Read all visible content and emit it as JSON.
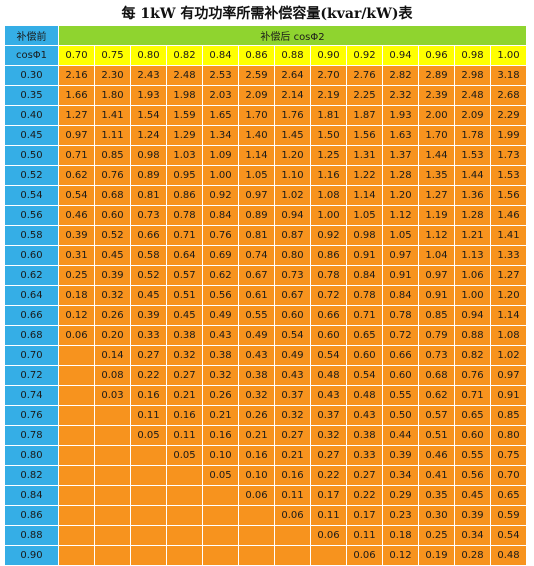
{
  "title": "每 1kW 有功功率所需补偿容量(kvar/kW)表",
  "header": {
    "before_label_line1": "补偿前",
    "before_label_line2": "cosΦ1",
    "after_label": "补偿后 cosΦ2"
  },
  "cos2": [
    "0.70",
    "0.75",
    "0.80",
    "0.82",
    "0.84",
    "0.86",
    "0.88",
    "0.90",
    "0.92",
    "0.94",
    "0.96",
    "0.98",
    "1.00"
  ],
  "rows": [
    {
      "cos1": "0.30",
      "values": [
        "2.16",
        "2.30",
        "2.43",
        "2.48",
        "2.53",
        "2.59",
        "2.64",
        "2.70",
        "2.76",
        "2.82",
        "2.89",
        "2.98",
        "3.18"
      ]
    },
    {
      "cos1": "0.35",
      "values": [
        "1.66",
        "1.80",
        "1.93",
        "1.98",
        "2.03",
        "2.09",
        "2.14",
        "2.19",
        "2.25",
        "2.32",
        "2.39",
        "2.48",
        "2.68"
      ]
    },
    {
      "cos1": "0.40",
      "values": [
        "1.27",
        "1.41",
        "1.54",
        "1.59",
        "1.65",
        "1.70",
        "1.76",
        "1.81",
        "1.87",
        "1.93",
        "2.00",
        "2.09",
        "2.29"
      ]
    },
    {
      "cos1": "0.45",
      "values": [
        "0.97",
        "1.11",
        "1.24",
        "1.29",
        "1.34",
        "1.40",
        "1.45",
        "1.50",
        "1.56",
        "1.63",
        "1.70",
        "1.78",
        "1.99"
      ]
    },
    {
      "cos1": "0.50",
      "values": [
        "0.71",
        "0.85",
        "0.98",
        "1.03",
        "1.09",
        "1.14",
        "1.20",
        "1.25",
        "1.31",
        "1.37",
        "1.44",
        "1.53",
        "1.73"
      ]
    },
    {
      "cos1": "0.52",
      "values": [
        "0.62",
        "0.76",
        "0.89",
        "0.95",
        "1.00",
        "1.05",
        "1.10",
        "1.16",
        "1.22",
        "1.28",
        "1.35",
        "1.44",
        "1.53"
      ]
    },
    {
      "cos1": "0.54",
      "values": [
        "0.54",
        "0.68",
        "0.81",
        "0.86",
        "0.92",
        "0.97",
        "1.02",
        "1.08",
        "1.14",
        "1.20",
        "1.27",
        "1.36",
        "1.56"
      ]
    },
    {
      "cos1": "0.56",
      "values": [
        "0.46",
        "0.60",
        "0.73",
        "0.78",
        "0.84",
        "0.89",
        "0.94",
        "1.00",
        "1.05",
        "1.12",
        "1.19",
        "1.28",
        "1.46"
      ]
    },
    {
      "cos1": "0.58",
      "values": [
        "0.39",
        "0.52",
        "0.66",
        "0.71",
        "0.76",
        "0.81",
        "0.87",
        "0.92",
        "0.98",
        "1.05",
        "1.12",
        "1.21",
        "1.41"
      ]
    },
    {
      "cos1": "0.60",
      "values": [
        "0.31",
        "0.45",
        "0.58",
        "0.64",
        "0.69",
        "0.74",
        "0.80",
        "0.86",
        "0.91",
        "0.97",
        "1.04",
        "1.13",
        "1.33"
      ]
    },
    {
      "cos1": "0.62",
      "values": [
        "0.25",
        "0.39",
        "0.52",
        "0.57",
        "0.62",
        "0.67",
        "0.73",
        "0.78",
        "0.84",
        "0.91",
        "0.97",
        "1.06",
        "1.27"
      ]
    },
    {
      "cos1": "0.64",
      "values": [
        "0.18",
        "0.32",
        "0.45",
        "0.51",
        "0.56",
        "0.61",
        "0.67",
        "0.72",
        "0.78",
        "0.84",
        "0.91",
        "1.00",
        "1.20"
      ]
    },
    {
      "cos1": "0.66",
      "values": [
        "0.12",
        "0.26",
        "0.39",
        "0.45",
        "0.49",
        "0.55",
        "0.60",
        "0.66",
        "0.71",
        "0.78",
        "0.85",
        "0.94",
        "1.14"
      ]
    },
    {
      "cos1": "0.68",
      "values": [
        "0.06",
        "0.20",
        "0.33",
        "0.38",
        "0.43",
        "0.49",
        "0.54",
        "0.60",
        "0.65",
        "0.72",
        "0.79",
        "0.88",
        "1.08"
      ]
    },
    {
      "cos1": "0.70",
      "values": [
        "",
        "0.14",
        "0.27",
        "0.32",
        "0.38",
        "0.43",
        "0.49",
        "0.54",
        "0.60",
        "0.66",
        "0.73",
        "0.82",
        "1.02"
      ]
    },
    {
      "cos1": "0.72",
      "values": [
        "",
        "0.08",
        "0.22",
        "0.27",
        "0.32",
        "0.38",
        "0.43",
        "0.48",
        "0.54",
        "0.60",
        "0.68",
        "0.76",
        "0.97"
      ]
    },
    {
      "cos1": "0.74",
      "values": [
        "",
        "0.03",
        "0.16",
        "0.21",
        "0.26",
        "0.32",
        "0.37",
        "0.43",
        "0.48",
        "0.55",
        "0.62",
        "0.71",
        "0.91"
      ]
    },
    {
      "cos1": "0.76",
      "values": [
        "",
        "",
        "0.11",
        "0.16",
        "0.21",
        "0.26",
        "0.32",
        "0.37",
        "0.43",
        "0.50",
        "0.57",
        "0.65",
        "0.85"
      ]
    },
    {
      "cos1": "0.78",
      "values": [
        "",
        "",
        "0.05",
        "0.11",
        "0.16",
        "0.21",
        "0.27",
        "0.32",
        "0.38",
        "0.44",
        "0.51",
        "0.60",
        "0.80"
      ]
    },
    {
      "cos1": "0.80",
      "values": [
        "",
        "",
        "",
        "0.05",
        "0.10",
        "0.16",
        "0.21",
        "0.27",
        "0.33",
        "0.39",
        "0.46",
        "0.55",
        "0.75"
      ]
    },
    {
      "cos1": "0.82",
      "values": [
        "",
        "",
        "",
        "",
        "0.05",
        "0.10",
        "0.16",
        "0.22",
        "0.27",
        "0.34",
        "0.41",
        "0.56",
        "0.70"
      ]
    },
    {
      "cos1": "0.84",
      "values": [
        "",
        "",
        "",
        "",
        "",
        "0.06",
        "0.11",
        "0.17",
        "0.22",
        "0.29",
        "0.35",
        "0.45",
        "0.65"
      ]
    },
    {
      "cos1": "0.86",
      "values": [
        "",
        "",
        "",
        "",
        "",
        "",
        "0.06",
        "0.11",
        "0.17",
        "0.23",
        "0.30",
        "0.39",
        "0.59"
      ]
    },
    {
      "cos1": "0.88",
      "values": [
        "",
        "",
        "",
        "",
        "",
        "",
        "",
        "0.06",
        "0.11",
        "0.18",
        "0.25",
        "0.34",
        "0.54"
      ]
    },
    {
      "cos1": "0.90",
      "values": [
        "",
        "",
        "",
        "",
        "",
        "",
        "",
        "",
        "0.06",
        "0.12",
        "0.19",
        "0.28",
        "0.48"
      ]
    }
  ],
  "colors": {
    "corner": "#35aee6",
    "after_header": "#8fd42f",
    "cos2_row": "#ffff00",
    "row_header": "#35aee6",
    "cells": "#f7931e"
  }
}
